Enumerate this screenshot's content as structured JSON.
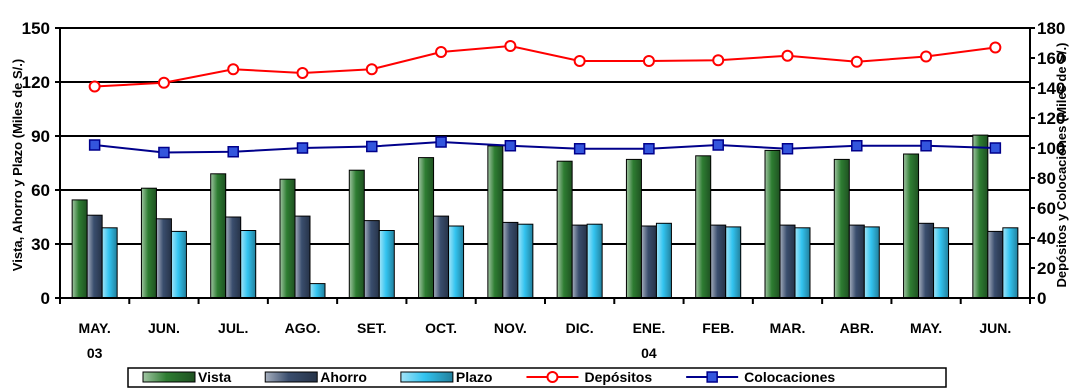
{
  "chart_data": {
    "type": "bar",
    "categories": [
      [
        "MAY.",
        "03"
      ],
      [
        "JUN.",
        ""
      ],
      [
        "JUL.",
        ""
      ],
      [
        "AGO.",
        ""
      ],
      [
        "SET.",
        ""
      ],
      [
        "OCT.",
        ""
      ],
      [
        "NOV.",
        ""
      ],
      [
        "DIC.",
        ""
      ],
      [
        "ENE.",
        "04"
      ],
      [
        "FEB.",
        ""
      ],
      [
        "MAR.",
        ""
      ],
      [
        "ABR.",
        ""
      ],
      [
        "MAY.",
        ""
      ],
      [
        "JUN.",
        ""
      ]
    ],
    "ylabel_left": "Vista, Ahorro y Plazo (Miles de S/.)",
    "ylabel_right": "Depósitos y Colocaciones (Miles de S/.)",
    "ylim_left": [
      0,
      150
    ],
    "yticks_left": [
      "0",
      "30",
      "60",
      "90",
      "120",
      "150"
    ],
    "ylim_right": [
      0,
      180
    ],
    "yticks_right": [
      "0",
      "20",
      "40",
      "60",
      "80",
      "100",
      "120",
      "140",
      "160",
      "180"
    ],
    "grid": "horizontal at left axis ticks",
    "legend_position": "bottom",
    "bar_series": [
      {
        "name": "Vista",
        "color": "#2e7d32",
        "values": [
          54.5,
          61,
          69,
          66,
          71,
          78,
          84.5,
          76,
          77,
          79,
          82,
          77,
          80,
          90.5
        ]
      },
      {
        "name": "Ahorro",
        "color": "#3a4e6e",
        "values": [
          46,
          44,
          45,
          45.5,
          43,
          45.5,
          42,
          40.5,
          40,
          40.5,
          40.5,
          40.5,
          41.5,
          37
        ]
      },
      {
        "name": "Plazo",
        "color": "#33c4f0",
        "values": [
          39,
          37,
          37.5,
          8,
          37.5,
          40,
          41,
          41,
          41.5,
          39.5,
          39,
          39.5,
          39,
          39
        ]
      }
    ],
    "line_series": [
      {
        "name": "Depósitos",
        "color": "#ff0000",
        "marker": "circle",
        "axis": "right",
        "values": [
          141,
          143.5,
          152.5,
          150,
          152.5,
          164,
          168,
          158,
          158,
          158.5,
          161.5,
          157.5,
          161,
          167
        ]
      },
      {
        "name": "Colocaciones",
        "color": "#00008b",
        "marker": "square",
        "axis": "right",
        "values": [
          102,
          97,
          97.5,
          100,
          101,
          104,
          101.5,
          99.5,
          99.5,
          102,
          99.5,
          101.5,
          101.5,
          100
        ]
      }
    ]
  }
}
